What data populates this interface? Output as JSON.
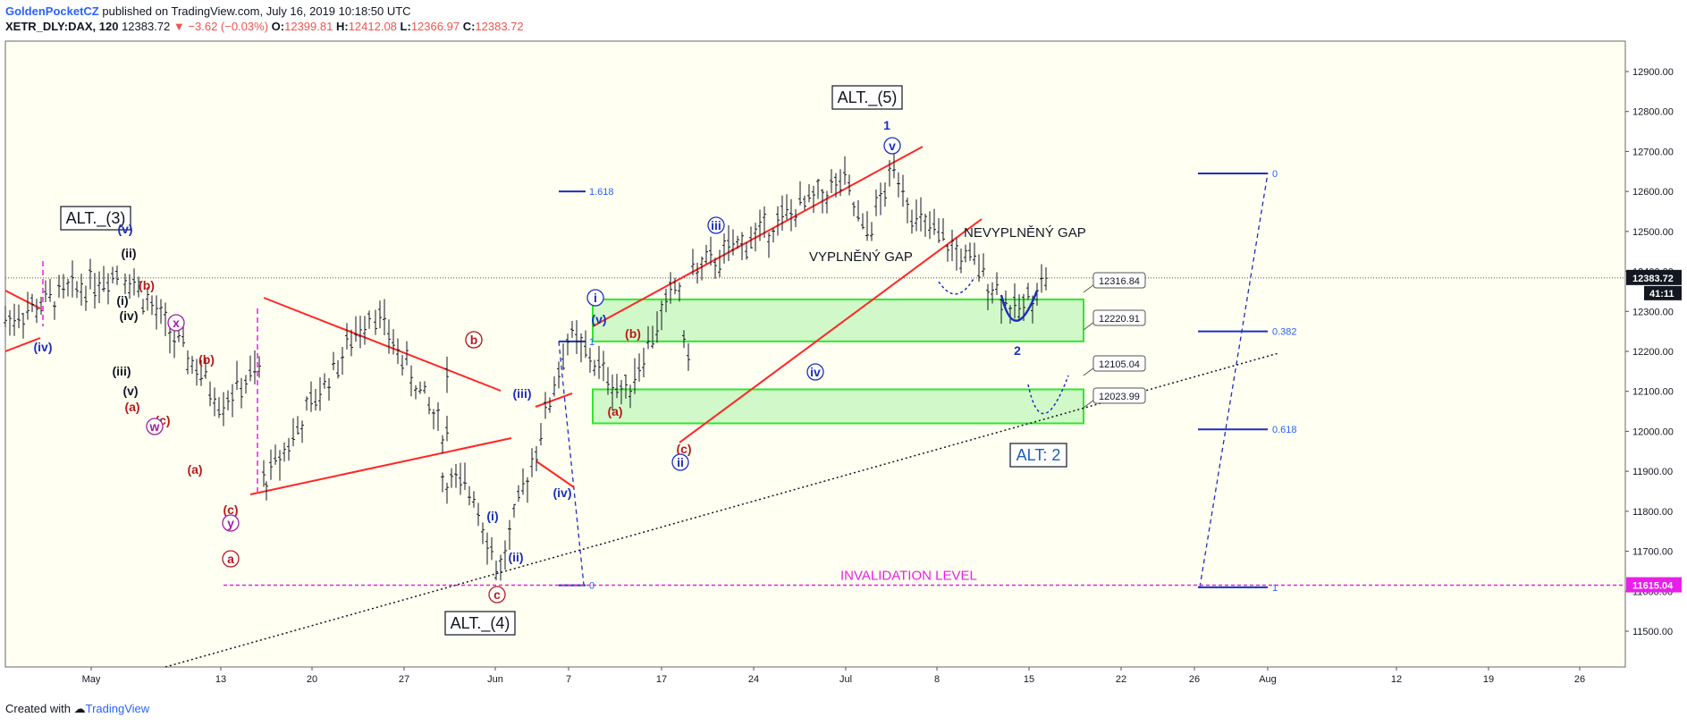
{
  "header": {
    "line1_author": "GoldenPocketCZ",
    "line1_rest": "published on TradingView.com, July 16, 2019 10:18:50 UTC",
    "symbol": "XETR_DLY:DAX, 120",
    "last": "12383.72",
    "change": "▼ −3.62 (−0.03%)",
    "o_label": "O:",
    "o_value": "12399.81",
    "h_label": "H:",
    "h_value": "12412.08",
    "l_label": "L:",
    "l_value": "12366.97",
    "c_label": "C:",
    "c_value": "12383.72"
  },
  "footer": {
    "created_with": "Created with",
    "brand": "TradingView"
  },
  "colors": {
    "candle": "#131722",
    "red": "#ff2626",
    "blue": "#1c2fbf",
    "magenta": "#e91ee9",
    "zone_fill": "#b9f5b0",
    "zone_stroke": "#2ee82e",
    "darkred": "#b71c1c",
    "price_tag": "#131722",
    "invalidation_tag": "#e91ee9"
  },
  "chart_data": {
    "type": "candlestick",
    "title": "",
    "ylim": [
      11400,
      12950
    ],
    "y_ticks": [
      "12900.00",
      "12800.00",
      "12700.00",
      "12600.00",
      "12500.00",
      "12400.00",
      "12300.00",
      "12200.00",
      "12100.00",
      "12000.00",
      "11900.00",
      "11800.00",
      "11700.00",
      "11600.00",
      "11500.00"
    ],
    "x_ticks": [
      "May",
      "13",
      "20",
      "27",
      "Jun",
      "7",
      "17",
      "24",
      "Jul",
      "8",
      "15",
      "22",
      "26",
      "Aug",
      "12",
      "19",
      "26"
    ],
    "grid": false,
    "last_price": "12383.72",
    "countdown": "41:11",
    "invalidation_price": "11615.04",
    "invalidation_label": "INVALIDATION LEVEL",
    "support_zones": [
      {
        "top": 12330,
        "bottom": 12225
      },
      {
        "top": 12105,
        "bottom": 12020
      }
    ],
    "price_callouts": [
      "12316.84",
      "12220.91",
      "12105.04",
      "12023.99"
    ],
    "fib_left": [
      {
        "label": "1.618",
        "price": 12600
      },
      {
        "label": "1",
        "price": 12225
      },
      {
        "label": "0",
        "price": 11615
      }
    ],
    "fib_right": [
      {
        "label": "0",
        "price": 12645
      },
      {
        "label": "0.382",
        "price": 12250
      },
      {
        "label": "0.618",
        "price": 12005
      },
      {
        "label": "1",
        "price": 11610
      }
    ],
    "text_notes": [
      "VYPLNĚNÝ GAP",
      "NEVYPLNĚNÝ GAP"
    ],
    "boxed_labels": [
      "ALT._(3)",
      "ALT._(4)",
      "ALT._(5)",
      "ALT: 2"
    ],
    "wave_labels": [
      "(iv)",
      "(v)",
      "(ii)",
      "(i)",
      "(iv)",
      "(iii)",
      "(v)",
      "(b)",
      "(a)",
      "(c)",
      "x",
      "w",
      "(b)",
      "(a)",
      "(c)",
      "y",
      "a",
      "(b)",
      "b",
      "(iii)",
      "(i)",
      "(ii)",
      "(iv)",
      "c",
      "i",
      "(v)",
      "(b)",
      "(a)",
      "(c)",
      "ii",
      "iii",
      "iv",
      "v",
      "1",
      "2"
    ],
    "series": [
      {
        "name": "DAX 120m",
        "type": "ohlc_bars",
        "segments": [
          {
            "from": 12280,
            "to": 12400
          },
          {
            "from": 12400,
            "to": 12080
          },
          {
            "from": 12080,
            "to": 12150
          },
          {
            "from": 12150,
            "to": 11880
          },
          {
            "from": 11880,
            "to": 12300
          },
          {
            "from": 12300,
            "to": 12000
          },
          {
            "from": 12000,
            "to": 12140
          },
          {
            "from": 12140,
            "to": 12020
          },
          {
            "from": 11880,
            "to": 11850
          },
          {
            "from": 11850,
            "to": 11660
          },
          {
            "from": 11660,
            "to": 12230
          },
          {
            "from": 12230,
            "to": 12100
          },
          {
            "from": 12100,
            "to": 12360
          },
          {
            "from": 12360,
            "to": 12210
          },
          {
            "from": 12210,
            "to": 12400
          },
          {
            "from": 12400,
            "to": 12620
          },
          {
            "from": 12620,
            "to": 12500
          },
          {
            "from": 12500,
            "to": 12650
          },
          {
            "from": 12650,
            "to": 12520
          },
          {
            "from": 12520,
            "to": 12420
          },
          {
            "from": 12420,
            "to": 12300
          },
          {
            "from": 12300,
            "to": 12390
          }
        ]
      }
    ]
  }
}
